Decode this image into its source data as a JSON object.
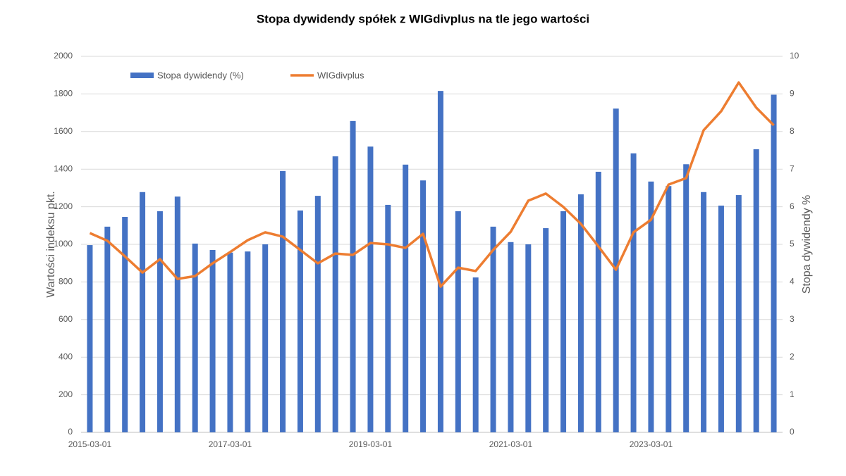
{
  "chart_data": {
    "type": "bar-line",
    "title": "Stopa dywidendy spółek z WIGdivplus na tle jego wartości",
    "y_label": "Wartości indeksu pkt.",
    "y2_label": "Stopa dywidendy %",
    "categories": [
      "2015-03-01",
      null,
      null,
      null,
      null,
      null,
      null,
      null,
      "2017-03-01",
      null,
      null,
      null,
      null,
      null,
      null,
      null,
      "2019-03-01",
      null,
      null,
      null,
      null,
      null,
      null,
      null,
      "2021-03-01",
      null,
      null,
      null,
      null,
      null,
      null,
      null,
      "2023-03-01",
      null,
      null,
      null,
      null,
      null,
      null,
      null
    ],
    "series": [
      {
        "name": "Stopa dywidendy (%)",
        "type": "bar",
        "axis": "y2",
        "color": "#4472c4",
        "values": [
          4.98,
          5.47,
          5.73,
          6.39,
          5.88,
          6.27,
          5.02,
          4.85,
          4.78,
          4.81,
          5.0,
          6.95,
          5.9,
          6.29,
          7.34,
          8.28,
          7.6,
          6.05,
          7.12,
          6.7,
          9.08,
          5.88,
          4.12,
          5.47,
          5.06,
          5.0,
          5.43,
          5.88,
          6.33,
          6.93,
          8.61,
          7.42,
          6.67,
          6.55,
          7.13,
          6.39,
          6.03,
          6.31,
          7.53,
          8.98
        ]
      },
      {
        "name": "WIGdivplus",
        "type": "line",
        "axis": "y",
        "color": "#ed7d31",
        "values": [
          1060,
          1019,
          936,
          850,
          921,
          816,
          831,
          899,
          959,
          1022,
          1064,
          1041,
          970,
          899,
          951,
          944,
          1007,
          1000,
          981,
          1056,
          775,
          876,
          858,
          970,
          1067,
          1232,
          1270,
          1199,
          1109,
          989,
          865,
          1064,
          1131,
          1318,
          1352,
          1607,
          1708,
          1861,
          1727,
          1633
        ]
      }
    ],
    "ylim": [
      0,
      2000
    ],
    "yticks": [
      0,
      200,
      400,
      600,
      800,
      1000,
      1200,
      1400,
      1600,
      1800,
      2000
    ],
    "y2lim": [
      0,
      10
    ],
    "y2ticks": [
      0,
      1,
      2,
      3,
      4,
      5,
      6,
      7,
      8,
      9,
      10
    ],
    "grid": true,
    "legend": "top-left"
  }
}
